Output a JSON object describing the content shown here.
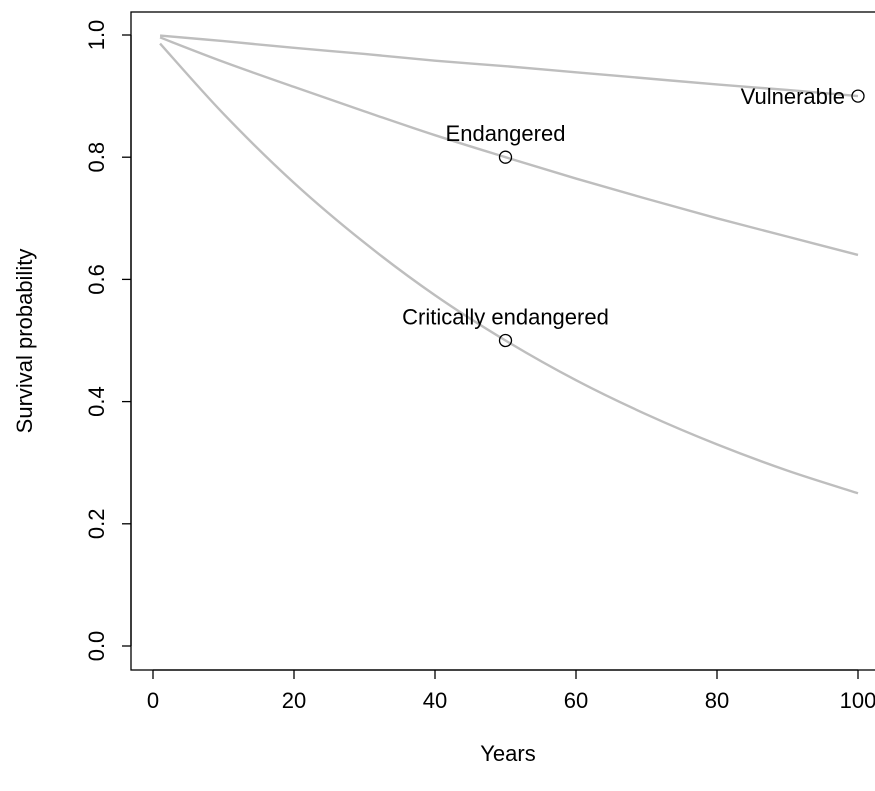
{
  "chart_data": {
    "type": "line",
    "xlabel": "Years",
    "ylabel": "Survival probability",
    "xlim": [
      0,
      100
    ],
    "ylim": [
      0,
      1
    ],
    "x_ticks": [
      0,
      20,
      40,
      60,
      80,
      100
    ],
    "x_tick_labels": [
      "0",
      "20",
      "40",
      "60",
      "80",
      "100"
    ],
    "y_ticks": [
      0.0,
      0.2,
      0.4,
      0.6,
      0.8,
      1.0
    ],
    "y_tick_labels": [
      "0.0",
      "0.2",
      "0.4",
      "0.6",
      "0.8",
      "1.0"
    ],
    "grid": false,
    "line_color": "#bebebe",
    "series": [
      {
        "x": [
          1,
          10,
          20,
          30,
          40,
          50,
          60,
          70,
          80,
          90,
          100
        ],
        "values": [
          0.999,
          0.99,
          0.979,
          0.969,
          0.958,
          0.949,
          0.939,
          0.929,
          0.919,
          0.91,
          0.9
        ]
      },
      {
        "x": [
          1,
          10,
          20,
          30,
          40,
          50,
          60,
          70,
          80,
          90,
          100
        ],
        "values": [
          0.996,
          0.956,
          0.915,
          0.875,
          0.836,
          0.8,
          0.765,
          0.732,
          0.7,
          0.67,
          0.64
        ]
      },
      {
        "x": [
          1,
          10,
          20,
          30,
          40,
          50,
          60,
          70,
          80,
          90,
          100
        ],
        "values": [
          0.986,
          0.871,
          0.758,
          0.66,
          0.574,
          0.5,
          0.435,
          0.379,
          0.33,
          0.287,
          0.25
        ]
      }
    ],
    "points": [
      {
        "x": 100,
        "y": 0.9,
        "label": "Vulnerable"
      },
      {
        "x": 50,
        "y": 0.8,
        "label": "Endangered"
      },
      {
        "x": 50,
        "y": 0.5,
        "label": "Critically endangered"
      }
    ]
  }
}
